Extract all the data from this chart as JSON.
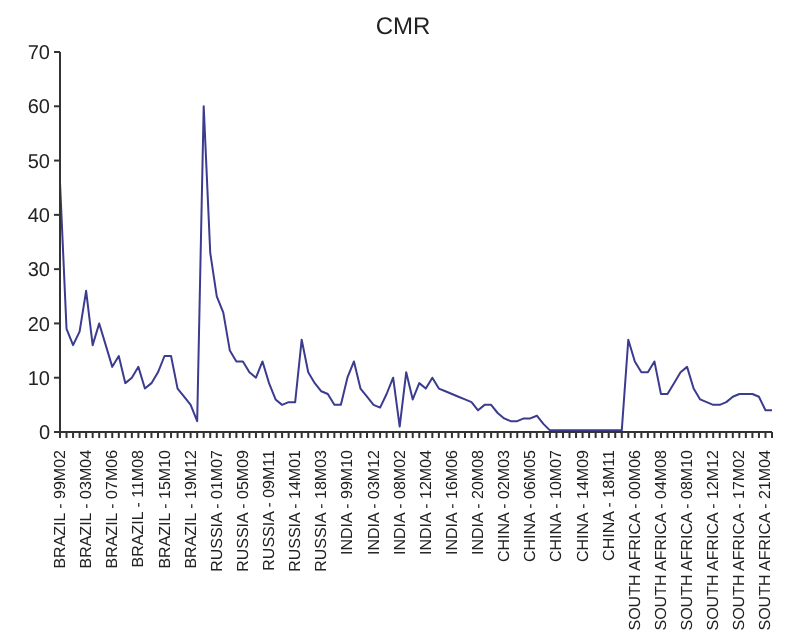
{
  "chart_data": {
    "type": "line",
    "title": "CMR",
    "categories": [
      "BRAZIL - 99M02",
      null,
      null,
      null,
      "BRAZIL - 03M04",
      null,
      null,
      null,
      "BRAZIL - 07M06",
      null,
      null,
      null,
      "BRAZIL - 11M08",
      null,
      null,
      null,
      "BRAZIL - 15M10",
      null,
      null,
      null,
      "BRAZIL - 19M12",
      null,
      null,
      null,
      "RUSSIA - 01M07",
      null,
      null,
      null,
      "RUSSIA - 05M09",
      null,
      null,
      null,
      "RUSSIA - 09M11",
      null,
      null,
      null,
      "RUSSIA - 14M01",
      null,
      null,
      null,
      "RUSSIA - 18M03",
      null,
      null,
      null,
      "INDIA - 99M10",
      null,
      null,
      null,
      "INDIA - 03M12",
      null,
      null,
      null,
      "INDIA - 08M02",
      null,
      null,
      null,
      "INDIA - 12M04",
      null,
      null,
      null,
      "INDIA - 16M06",
      null,
      null,
      null,
      "INDIA - 20M08",
      null,
      null,
      null,
      "CHINA - 02M03",
      null,
      null,
      null,
      "CHINA - 06M05",
      null,
      null,
      null,
      "CHINA - 10M07",
      null,
      null,
      null,
      "CHINA - 14M09",
      null,
      null,
      null,
      "CHINA - 18M11",
      null,
      null,
      null,
      "SOUTH AFRICA - 00M06",
      null,
      null,
      null,
      "SOUTH AFRICA - 04M08",
      null,
      null,
      null,
      "SOUTH AFRICA - 08M10",
      null,
      null,
      null,
      "SOUTH AFRICA - 12M12",
      null,
      null,
      null,
      "SOUTH AFRICA - 17M02",
      null,
      null,
      null,
      "SOUTH AFRICA - 21M04",
      null
    ],
    "series": [
      {
        "color": "#3b3b8f",
        "values": [
          46,
          19,
          16,
          18.5,
          26,
          16,
          20,
          16,
          12,
          14,
          9,
          10,
          12,
          8,
          9,
          11,
          14,
          14,
          8,
          6.5,
          5,
          2,
          60,
          33,
          25,
          22,
          15,
          13,
          13,
          11,
          10,
          13,
          9,
          6,
          5,
          5.5,
          5.5,
          17,
          11,
          9,
          7.5,
          7,
          5,
          5,
          10,
          13,
          8,
          6.5,
          5,
          4.5,
          7,
          10,
          1,
          11,
          6,
          9,
          8,
          10,
          8,
          7.5,
          7,
          6.5,
          6,
          5.5,
          4,
          5,
          5,
          3.5,
          2.5,
          2,
          2,
          2.5,
          2.5,
          3,
          1.5,
          0.3,
          0.3,
          0.3,
          0.3,
          0.3,
          0.3,
          0.3,
          0.3,
          0.3,
          0.3,
          0.3,
          0.3,
          17,
          13,
          11,
          11,
          13,
          7,
          7,
          9,
          11,
          12,
          8,
          6,
          5.5,
          5,
          5,
          5.5,
          6.5,
          7,
          7,
          7,
          6.5,
          4,
          4
        ]
      }
    ],
    "ylim": [
      0,
      70
    ],
    "yticks": [
      0,
      10,
      20,
      30,
      40,
      50,
      60,
      70
    ],
    "grid": false,
    "legend": false,
    "marker": "none",
    "line_style": "solid"
  }
}
